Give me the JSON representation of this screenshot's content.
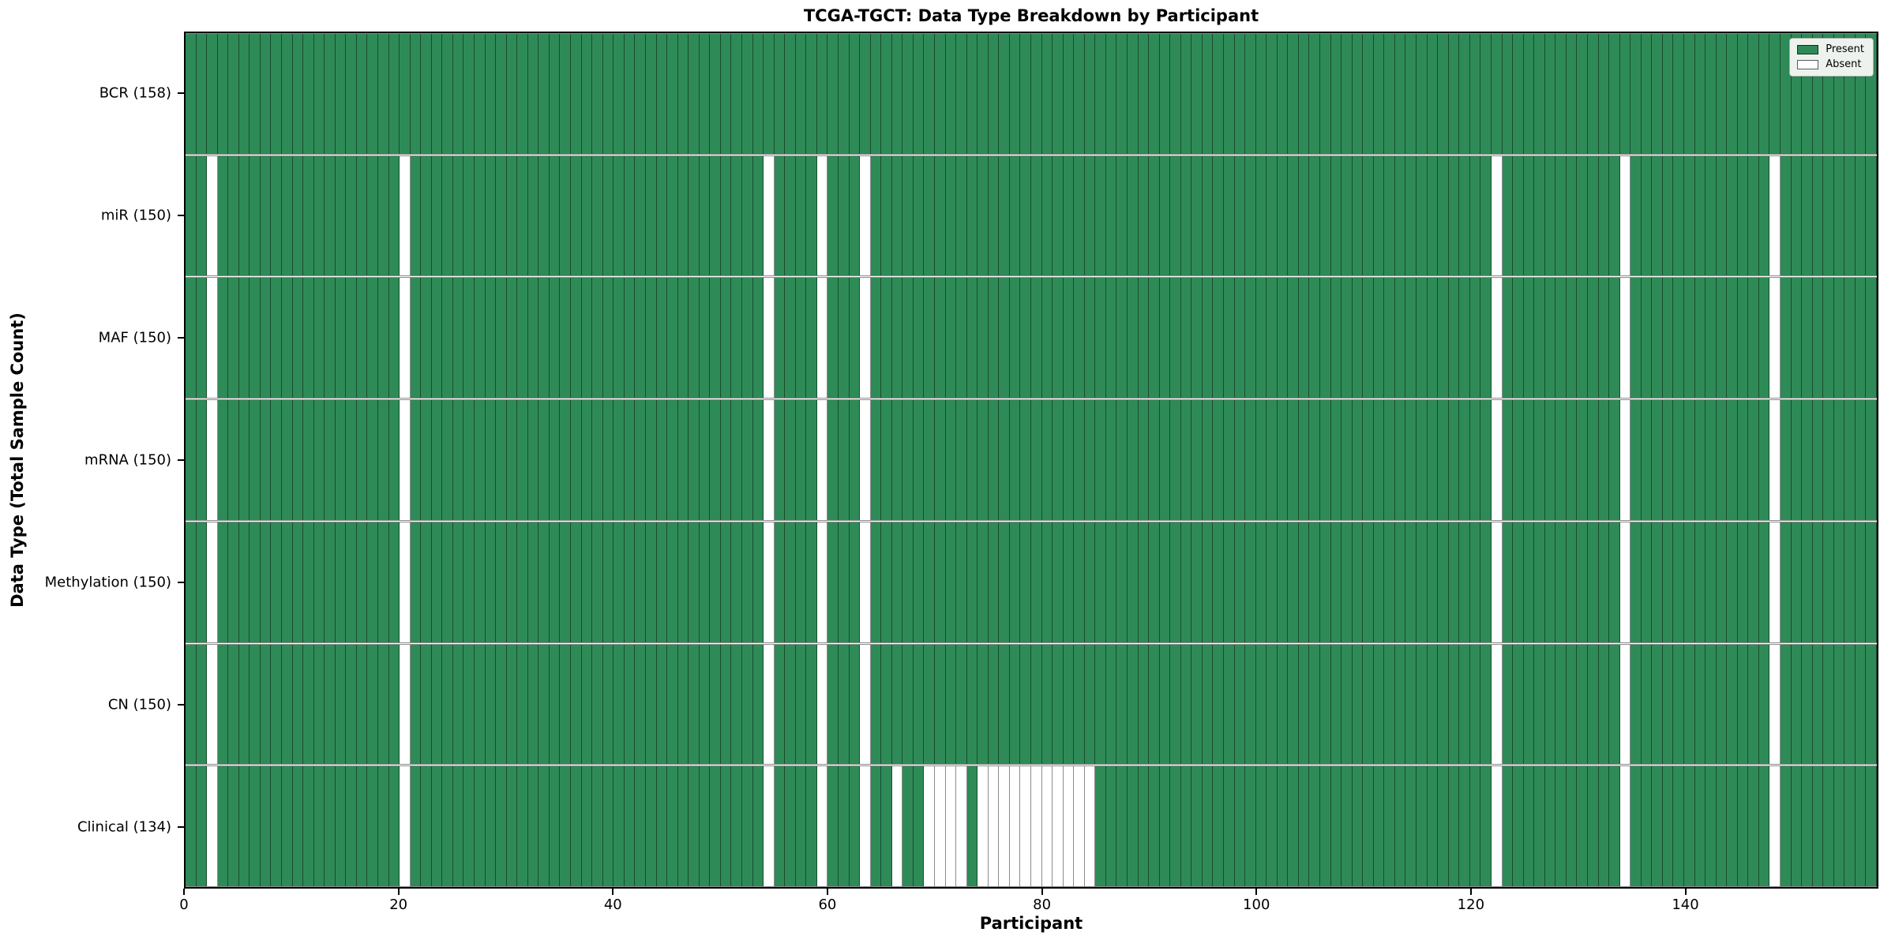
{
  "chart_data": {
    "type": "heatmap",
    "title": "TCGA-TGCT: Data Type Breakdown by Participant",
    "xlabel": "Participant",
    "ylabel": "Data Type (Total Sample Count)",
    "n_participants": 158,
    "x_ticks": [
      0,
      20,
      40,
      60,
      80,
      100,
      120,
      140
    ],
    "grid": "cell-borders",
    "legend_position": "upper right",
    "rows": [
      {
        "key": "bcr",
        "label": "BCR (158)",
        "data_type": "BCR",
        "present_count": 158,
        "absent_participants": []
      },
      {
        "key": "mir",
        "label": "miR (150)",
        "data_type": "miR",
        "present_count": 150,
        "absent_participants": [
          2,
          20,
          54,
          59,
          63,
          122,
          134,
          148
        ]
      },
      {
        "key": "maf",
        "label": "MAF (150)",
        "data_type": "MAF",
        "present_count": 150,
        "absent_participants": [
          2,
          20,
          54,
          59,
          63,
          122,
          134,
          148
        ]
      },
      {
        "key": "mrna",
        "label": "mRNA (150)",
        "data_type": "mRNA",
        "present_count": 150,
        "absent_participants": [
          2,
          20,
          54,
          59,
          63,
          122,
          134,
          148
        ]
      },
      {
        "key": "methylation",
        "label": "Methylation (150)",
        "data_type": "Methylation",
        "present_count": 150,
        "absent_participants": [
          2,
          20,
          54,
          59,
          63,
          122,
          134,
          148
        ]
      },
      {
        "key": "cn",
        "label": "CN (150)",
        "data_type": "CN",
        "present_count": 150,
        "absent_participants": [
          2,
          20,
          54,
          59,
          63,
          122,
          134,
          148
        ]
      },
      {
        "key": "clinical",
        "label": "Clinical (134)",
        "data_type": "Clinical",
        "present_count": 134,
        "absent_participants": [
          2,
          20,
          54,
          59,
          63,
          66,
          69,
          70,
          71,
          72,
          74,
          75,
          76,
          77,
          78,
          79,
          80,
          81,
          82,
          83,
          84,
          122,
          134,
          148
        ]
      }
    ],
    "legend": [
      {
        "label": "Present",
        "color": "#2e8b57"
      },
      {
        "label": "Absent",
        "color": "#ffffff"
      }
    ],
    "colors": {
      "present": "#2e8b57",
      "absent": "#ffffff",
      "cell_edge": "rgba(0,0,0,0.45)",
      "spine": "#000000",
      "background": "#ffffff",
      "legend_background": "#eef2ee"
    }
  }
}
